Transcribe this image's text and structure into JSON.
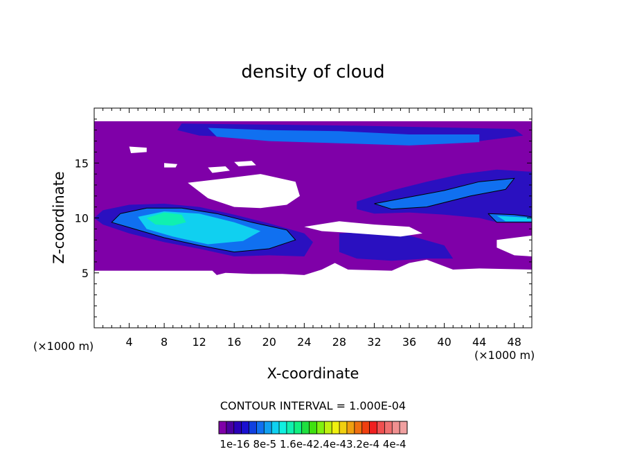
{
  "chart_data": {
    "type": "heatmap",
    "title": "density of cloud",
    "xlabel": "X-coordinate",
    "ylabel": "Z-coordinate",
    "x_unit_label_left": "(×1000 m)",
    "x_unit_label_right": "(×1000 m)",
    "xlim": [
      0,
      50
    ],
    "ylim": [
      0,
      20
    ],
    "x_ticks": [
      4,
      8,
      12,
      16,
      20,
      24,
      28,
      32,
      36,
      40,
      44,
      48
    ],
    "y_ticks": [
      5,
      10,
      15
    ],
    "contour_interval_label": "CONTOUR INTERVAL = 1.000E-04",
    "colorbar": {
      "tick_labels": [
        "1e-16",
        "8e-5",
        "1.6e-4",
        "2.4e-4",
        "3.2e-4",
        "4e-4"
      ],
      "tick_label_text": "1e-16 8e-5 1.6e-42.4e-43.2e-4 4e-4",
      "colors": [
        "#7f00a8",
        "#4b00a0",
        "#2a00b8",
        "#1a10d0",
        "#1040e0",
        "#1070f0",
        "#10a0f0",
        "#10d0f0",
        "#10f0e0",
        "#10f0b0",
        "#10f080",
        "#20e040",
        "#40e010",
        "#80f010",
        "#c0f010",
        "#f0f010",
        "#f0d010",
        "#f0a010",
        "#f07010",
        "#f04010",
        "#f02020",
        "#f05050",
        "#f07070",
        "#f09090",
        "#f0a0a0"
      ]
    },
    "regions": [
      {
        "level": 1e-16,
        "color": "#7f00a8",
        "shape": [
          [
            0,
            18.8
          ],
          [
            50,
            18.8
          ],
          [
            50,
            5.3
          ],
          [
            44,
            5.4
          ],
          [
            41,
            5.3
          ],
          [
            38,
            6.2
          ],
          [
            36,
            5.9
          ],
          [
            34,
            5.2
          ],
          [
            29,
            5.3
          ],
          [
            27.5,
            5.9
          ],
          [
            26,
            5.3
          ],
          [
            24,
            4.8
          ],
          [
            21.5,
            4.9
          ],
          [
            18,
            4.9
          ],
          [
            15,
            5.0
          ],
          [
            14,
            4.8
          ],
          [
            13.5,
            5.2
          ],
          [
            0,
            5.2
          ]
        ]
      },
      {
        "level": 2e-05,
        "color": "#2a10c0",
        "shape": [
          [
            10,
            18.6
          ],
          [
            20,
            18.5
          ],
          [
            30,
            18.4
          ],
          [
            42,
            18.2
          ],
          [
            48,
            18.1
          ],
          [
            49,
            17.5
          ],
          [
            44,
            17.0
          ],
          [
            38,
            16.8
          ],
          [
            30,
            16.9
          ],
          [
            24,
            17.0
          ],
          [
            18,
            17.3
          ],
          [
            12,
            17.5
          ],
          [
            9.5,
            18.0
          ]
        ]
      },
      {
        "level": 2e-05,
        "color": "#2a10c0",
        "shape": [
          [
            1,
            10.7
          ],
          [
            4,
            11.2
          ],
          [
            8,
            11.3
          ],
          [
            12,
            11.0
          ],
          [
            16,
            10.3
          ],
          [
            20,
            9.5
          ],
          [
            24,
            8.6
          ],
          [
            25,
            7.8
          ],
          [
            24,
            6.5
          ],
          [
            20,
            6.6
          ],
          [
            16,
            6.5
          ],
          [
            12,
            7.2
          ],
          [
            8,
            7.8
          ],
          [
            4,
            8.6
          ],
          [
            1,
            9.4
          ],
          [
            0,
            10.0
          ]
        ]
      },
      {
        "level": 2e-05,
        "color": "#2a10c0",
        "shape": [
          [
            28,
            8.6
          ],
          [
            32,
            8.8
          ],
          [
            36,
            8.4
          ],
          [
            40,
            7.5
          ],
          [
            41,
            6.3
          ],
          [
            38,
            6.3
          ],
          [
            34,
            6.1
          ],
          [
            30,
            6.3
          ],
          [
            28,
            6.9
          ]
        ]
      },
      {
        "level": 2e-05,
        "color": "#2a10c0",
        "shape": [
          [
            30,
            11.5
          ],
          [
            34,
            12.5
          ],
          [
            38,
            13.3
          ],
          [
            42,
            14.0
          ],
          [
            46,
            14.4
          ],
          [
            50,
            14.2
          ],
          [
            50,
            9.8
          ],
          [
            46,
            9.6
          ],
          [
            44,
            10.0
          ],
          [
            40,
            10.3
          ],
          [
            36,
            10.5
          ],
          [
            32,
            10.4
          ],
          [
            30,
            10.8
          ]
        ]
      },
      {
        "level": 8e-05,
        "color": "#1070f0",
        "shape": [
          [
            13,
            18.2
          ],
          [
            20,
            18.0
          ],
          [
            28,
            17.9
          ],
          [
            36,
            17.6
          ],
          [
            44,
            17.6
          ],
          [
            44,
            16.9
          ],
          [
            36,
            16.6
          ],
          [
            28,
            16.8
          ],
          [
            20,
            17.0
          ],
          [
            14,
            17.4
          ]
        ]
      },
      {
        "level": 8e-05,
        "color": "#1070f0",
        "shape": [
          [
            3,
            10.4
          ],
          [
            6,
            10.9
          ],
          [
            10,
            10.9
          ],
          [
            14,
            10.4
          ],
          [
            18,
            9.6
          ],
          [
            22,
            8.9
          ],
          [
            23,
            8.0
          ],
          [
            20,
            7.2
          ],
          [
            16,
            6.9
          ],
          [
            12,
            7.5
          ],
          [
            8,
            8.2
          ],
          [
            5,
            8.9
          ],
          [
            2,
            9.6
          ]
        ]
      },
      {
        "level": 8e-05,
        "color": "#1070f0",
        "shape": [
          [
            32,
            11.3
          ],
          [
            36,
            11.9
          ],
          [
            40,
            12.5
          ],
          [
            44,
            13.3
          ],
          [
            48,
            13.6
          ],
          [
            47,
            12.6
          ],
          [
            43,
            12.0
          ],
          [
            38,
            11.0
          ],
          [
            34,
            10.8
          ]
        ]
      },
      {
        "level": 8e-05,
        "color": "#1070f0",
        "shape": [
          [
            45,
            10.4
          ],
          [
            48,
            10.3
          ],
          [
            50,
            10.1
          ],
          [
            50,
            9.6
          ],
          [
            46,
            9.6
          ]
        ]
      },
      {
        "level": 0.00016,
        "color": "#10d0f0",
        "shape": [
          [
            5,
            10.1
          ],
          [
            8,
            10.6
          ],
          [
            12,
            10.4
          ],
          [
            16,
            9.6
          ],
          [
            19,
            8.8
          ],
          [
            17,
            7.9
          ],
          [
            13,
            7.6
          ],
          [
            9,
            8.3
          ],
          [
            6,
            9.0
          ]
        ]
      },
      {
        "level": 0.00016,
        "color": "#10d0f0",
        "shape": [
          [
            46,
            10.2
          ],
          [
            50,
            10.0
          ],
          [
            50,
            9.7
          ],
          [
            47,
            9.7
          ]
        ]
      },
      {
        "level": 0.00024,
        "color": "#10f0b0",
        "shape": [
          [
            6,
            10.0
          ],
          [
            8,
            10.5
          ],
          [
            10,
            10.3
          ],
          [
            10.5,
            9.6
          ],
          [
            9,
            9.3
          ],
          [
            7,
            9.4
          ]
        ]
      }
    ],
    "clear_regions": [
      [
        [
          10.7,
          13.2
        ],
        [
          15,
          13.6
        ],
        [
          19,
          14.0
        ],
        [
          23,
          13.3
        ],
        [
          23.5,
          12.0
        ],
        [
          22,
          11.2
        ],
        [
          19,
          10.9
        ],
        [
          16,
          11.0
        ],
        [
          13,
          11.8
        ]
      ],
      [
        [
          4,
          16.5
        ],
        [
          6,
          16.4
        ],
        [
          6,
          16.0
        ],
        [
          4.2,
          15.9
        ]
      ],
      [
        [
          8,
          15.0
        ],
        [
          9.5,
          14.9
        ],
        [
          9.3,
          14.6
        ],
        [
          8,
          14.6
        ]
      ],
      [
        [
          13,
          14.6
        ],
        [
          15,
          14.7
        ],
        [
          15.5,
          14.3
        ],
        [
          13.5,
          14.1
        ]
      ],
      [
        [
          16,
          15.1
        ],
        [
          18,
          15.2
        ],
        [
          18.5,
          14.8
        ],
        [
          16.5,
          14.7
        ]
      ],
      [
        [
          24,
          9.2
        ],
        [
          28,
          9.7
        ],
        [
          32,
          9.4
        ],
        [
          36,
          9.2
        ],
        [
          37.5,
          8.6
        ],
        [
          35,
          8.3
        ],
        [
          30,
          8.6
        ],
        [
          26,
          8.8
        ]
      ],
      [
        [
          46,
          8.0
        ],
        [
          50,
          8.4
        ],
        [
          50,
          6.5
        ],
        [
          48,
          6.6
        ],
        [
          46,
          7.3
        ]
      ]
    ],
    "contour_lines": [
      [
        [
          3,
          10.4
        ],
        [
          6,
          10.9
        ],
        [
          10,
          10.9
        ],
        [
          14,
          10.4
        ],
        [
          18,
          9.6
        ],
        [
          22,
          8.9
        ],
        [
          23,
          8.0
        ],
        [
          20,
          7.2
        ],
        [
          16,
          6.9
        ],
        [
          12,
          7.5
        ],
        [
          8,
          8.2
        ],
        [
          5,
          8.9
        ],
        [
          2,
          9.6
        ],
        [
          3,
          10.4
        ]
      ],
      [
        [
          32,
          11.3
        ],
        [
          36,
          11.9
        ],
        [
          40,
          12.5
        ],
        [
          44,
          13.3
        ],
        [
          48,
          13.6
        ],
        [
          47,
          12.6
        ],
        [
          43,
          12.0
        ],
        [
          38,
          11.0
        ],
        [
          34,
          10.8
        ],
        [
          32,
          11.3
        ]
      ],
      [
        [
          45,
          10.4
        ],
        [
          48,
          10.3
        ],
        [
          50,
          10.1
        ],
        [
          50,
          9.6
        ],
        [
          46,
          9.6
        ],
        [
          45,
          10.4
        ]
      ]
    ]
  }
}
